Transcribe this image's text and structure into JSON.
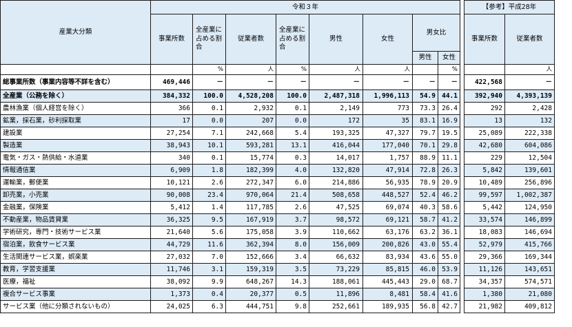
{
  "headers": {
    "industry": "産業大分類",
    "reiwa": "令和３年",
    "reference": "【参考】平成28年",
    "establishments": "事業所数",
    "share_of_all": "全産業に占める割合",
    "employees": "従業者数",
    "male": "男性",
    "female": "女性",
    "gender_ratio": "男女比",
    "ratio_male": "男性",
    "ratio_female": "女性",
    "ref_establishments": "事業所数",
    "ref_employees": "従業者数"
  },
  "units": {
    "pct": "%",
    "person": "人"
  },
  "grand_total": {
    "label": "総事業所数（事業内容等不詳を含む）",
    "establishments": "469,446",
    "share": "－",
    "employees": "－",
    "emp_share": "－",
    "male": "－",
    "female": "－",
    "ratio_male": "－",
    "ratio_female": "－",
    "ref_establishments": "422,568",
    "ref_employees": "－"
  },
  "all_industries": {
    "label": "全産業（公務を除く）",
    "establishments": "384,332",
    "share": "100.0",
    "employees": "4,528,208",
    "emp_share": "100.0",
    "male": "2,487,318",
    "female": "1,996,113",
    "ratio_male": "54.9",
    "ratio_female": "44.1",
    "ref_establishments": "392,940",
    "ref_employees": "4,393,139"
  },
  "rows": [
    {
      "label": "農林漁業（個人経営を除く）",
      "establishments": "366",
      "share": "0.1",
      "employees": "2,932",
      "emp_share": "0.1",
      "male": "2,149",
      "female": "773",
      "ratio_male": "73.3",
      "ratio_female": "26.4",
      "ref_establishments": "292",
      "ref_employees": "2,428"
    },
    {
      "label": "鉱業，採石業，砂利採取業",
      "establishments": "17",
      "share": "0.0",
      "employees": "207",
      "emp_share": "0.0",
      "male": "172",
      "female": "35",
      "ratio_male": "83.1",
      "ratio_female": "16.9",
      "ref_establishments": "13",
      "ref_employees": "132"
    },
    {
      "label": "建設業",
      "establishments": "27,254",
      "share": "7.1",
      "employees": "242,668",
      "emp_share": "5.4",
      "male": "193,325",
      "female": "47,327",
      "ratio_male": "79.7",
      "ratio_female": "19.5",
      "ref_establishments": "25,089",
      "ref_employees": "222,338"
    },
    {
      "label": "製造業",
      "establishments": "38,943",
      "share": "10.1",
      "employees": "593,281",
      "emp_share": "13.1",
      "male": "416,044",
      "female": "177,040",
      "ratio_male": "70.1",
      "ratio_female": "29.8",
      "ref_establishments": "42,680",
      "ref_employees": "604,086"
    },
    {
      "label": "電気・ガス・熱供給・水道業",
      "establishments": "340",
      "share": "0.1",
      "employees": "15,774",
      "emp_share": "0.3",
      "male": "14,017",
      "female": "1,757",
      "ratio_male": "88.9",
      "ratio_female": "11.1",
      "ref_establishments": "229",
      "ref_employees": "12,504"
    },
    {
      "label": "情報通信業",
      "establishments": "6,909",
      "share": "1.8",
      "employees": "182,399",
      "emp_share": "4.0",
      "male": "132,820",
      "female": "47,914",
      "ratio_male": "72.8",
      "ratio_female": "26.3",
      "ref_establishments": "5,842",
      "ref_employees": "139,601"
    },
    {
      "label": "運輸業，郵便業",
      "establishments": "10,121",
      "share": "2.6",
      "employees": "272,347",
      "emp_share": "6.0",
      "male": "214,886",
      "female": "56,935",
      "ratio_male": "78.9",
      "ratio_female": "20.9",
      "ref_establishments": "10,489",
      "ref_employees": "256,896"
    },
    {
      "label": "卸売業，小売業",
      "establishments": "90,008",
      "share": "23.4",
      "employees": "970,064",
      "emp_share": "21.4",
      "male": "508,658",
      "female": "448,527",
      "ratio_male": "52.4",
      "ratio_female": "46.2",
      "ref_establishments": "99,597",
      "ref_employees": "1,002,387"
    },
    {
      "label": "金融業，保険業",
      "establishments": "5,412",
      "share": "1.4",
      "employees": "117,785",
      "emp_share": "2.6",
      "male": "47,525",
      "female": "69,074",
      "ratio_male": "40.3",
      "ratio_female": "58.6",
      "ref_establishments": "5,442",
      "ref_employees": "124,950"
    },
    {
      "label": "不動産業，物品賃貸業",
      "establishments": "36,325",
      "share": "9.5",
      "employees": "167,919",
      "emp_share": "3.7",
      "male": "98,572",
      "female": "69,121",
      "ratio_male": "58.7",
      "ratio_female": "41.2",
      "ref_establishments": "33,574",
      "ref_employees": "146,899"
    },
    {
      "label": "学術研究，専門・技術サービス業",
      "establishments": "21,640",
      "share": "5.6",
      "employees": "175,058",
      "emp_share": "3.9",
      "male": "110,662",
      "female": "63,176",
      "ratio_male": "63.2",
      "ratio_female": "36.1",
      "ref_establishments": "18,083",
      "ref_employees": "146,694"
    },
    {
      "label": "宿泊業，飲食サービス業",
      "establishments": "44,729",
      "share": "11.6",
      "employees": "362,394",
      "emp_share": "8.0",
      "male": "156,009",
      "female": "200,826",
      "ratio_male": "43.0",
      "ratio_female": "55.4",
      "ref_establishments": "52,979",
      "ref_employees": "415,766"
    },
    {
      "label": "生活関連サービス業，娯楽業",
      "establishments": "27,032",
      "share": "7.0",
      "employees": "152,666",
      "emp_share": "3.4",
      "male": "66,632",
      "female": "83,934",
      "ratio_male": "43.6",
      "ratio_female": "55.0",
      "ref_establishments": "29,366",
      "ref_employees": "169,344"
    },
    {
      "label": "教育，学習支援業",
      "establishments": "11,746",
      "share": "3.1",
      "employees": "159,319",
      "emp_share": "3.5",
      "male": "73,229",
      "female": "85,815",
      "ratio_male": "46.0",
      "ratio_female": "53.9",
      "ref_establishments": "11,126",
      "ref_employees": "143,651"
    },
    {
      "label": "医療，福祉",
      "establishments": "38,092",
      "share": "9.9",
      "employees": "648,267",
      "emp_share": "14.3",
      "male": "188,061",
      "female": "445,443",
      "ratio_male": "29.0",
      "ratio_female": "68.7",
      "ref_establishments": "34,357",
      "ref_employees": "574,571"
    },
    {
      "label": "複合サービス事業",
      "establishments": "1,373",
      "share": "0.4",
      "employees": "20,377",
      "emp_share": "0.5",
      "male": "11,896",
      "female": "8,481",
      "ratio_male": "58.4",
      "ratio_female": "41.6",
      "ref_establishments": "1,380",
      "ref_employees": "21,080"
    },
    {
      "label": "サービス業（他に分類されないもの）",
      "establishments": "24,025",
      "share": "6.3",
      "employees": "444,751",
      "emp_share": "9.8",
      "male": "252,661",
      "female": "189,935",
      "ratio_male": "56.8",
      "ratio_female": "42.7",
      "ref_establishments": "21,982",
      "ref_employees": "409,812"
    }
  ]
}
